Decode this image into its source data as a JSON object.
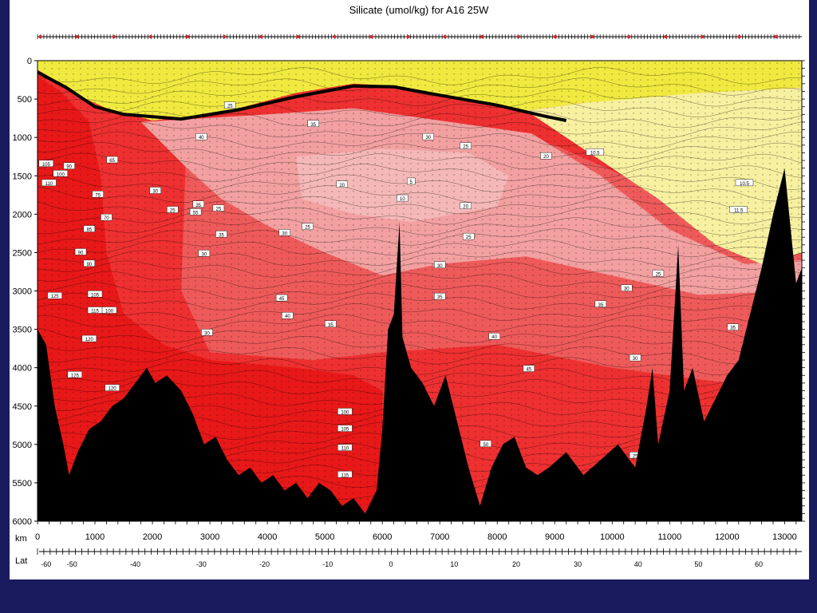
{
  "chart_data": {
    "type": "heatmap",
    "title": "Silicate (umol/kg) for A16 25W",
    "xlabel": "km",
    "x2label": "Lat",
    "y_ticks": [
      0,
      500,
      1000,
      1500,
      2000,
      2500,
      3000,
      3500,
      4000,
      4500,
      5000,
      5500,
      6000
    ],
    "ylim": [
      0,
      6000
    ],
    "y_inverted": true,
    "x_ticks": [
      0,
      1000,
      2000,
      3000,
      4000,
      5000,
      6000,
      7000,
      8000,
      9000,
      10000,
      11000,
      12000,
      13000
    ],
    "xlim": [
      0,
      13300
    ],
    "lat_ticks": [
      "-60",
      "-50",
      "-40",
      "-30",
      "-20",
      "-10",
      "0",
      "10",
      "20",
      "30",
      "40",
      "50",
      "60"
    ],
    "lat_tick_km": [
      150,
      600,
      1700,
      2850,
      3950,
      5050,
      6150,
      7250,
      8330,
      9400,
      10450,
      11500,
      12550
    ],
    "colors": {
      "low": "#f7f05a",
      "pale": "#f7f0a0",
      "pink": "#f2a0a0",
      "mid": "#ee6060",
      "high": "#ee2020",
      "bottom": "#000000",
      "border": "#1a1a5e"
    },
    "contour_labels": [
      {
        "text": "25",
        "km": 3350,
        "depth": 590
      },
      {
        "text": "35",
        "km": 4800,
        "depth": 830
      },
      {
        "text": "30",
        "km": 6800,
        "depth": 1000
      },
      {
        "text": "25",
        "km": 7450,
        "depth": 1120
      },
      {
        "text": "20",
        "km": 8850,
        "depth": 1250
      },
      {
        "text": "20",
        "km": 7450,
        "depth": 1900
      },
      {
        "text": "25",
        "km": 7500,
        "depth": 2300
      },
      {
        "text": "30",
        "km": 7000,
        "depth": 2670
      },
      {
        "text": "35",
        "km": 7000,
        "depth": 3080
      },
      {
        "text": "35",
        "km": 9800,
        "depth": 3180
      },
      {
        "text": "30",
        "km": 10250,
        "depth": 2970
      },
      {
        "text": "25",
        "km": 10800,
        "depth": 2780
      },
      {
        "text": "40",
        "km": 7950,
        "depth": 3600
      },
      {
        "text": "45",
        "km": 8550,
        "depth": 4020
      },
      {
        "text": "30",
        "km": 10400,
        "depth": 3880
      },
      {
        "text": "35",
        "km": 12100,
        "depth": 3480
      },
      {
        "text": "50",
        "km": 7800,
        "depth": 5000
      },
      {
        "text": "25",
        "km": 10400,
        "depth": 5150
      },
      {
        "text": "45",
        "km": 4250,
        "depth": 3100
      },
      {
        "text": "40",
        "km": 4350,
        "depth": 3330
      },
      {
        "text": "35",
        "km": 5100,
        "depth": 3440
      },
      {
        "text": "30",
        "km": 2950,
        "depth": 3550
      },
      {
        "text": "35",
        "km": 3200,
        "depth": 2270
      },
      {
        "text": "30",
        "km": 2900,
        "depth": 2520
      },
      {
        "text": "25",
        "km": 3150,
        "depth": 1930
      },
      {
        "text": "25",
        "km": 2350,
        "depth": 1950
      },
      {
        "text": "35",
        "km": 2800,
        "depth": 1880
      },
      {
        "text": "30",
        "km": 2050,
        "depth": 1700
      },
      {
        "text": "65",
        "km": 1300,
        "depth": 1300
      },
      {
        "text": "75",
        "km": 1050,
        "depth": 1750
      },
      {
        "text": "70",
        "km": 1200,
        "depth": 2050
      },
      {
        "text": "85",
        "km": 900,
        "depth": 2200
      },
      {
        "text": "90",
        "km": 750,
        "depth": 2500
      },
      {
        "text": "90",
        "km": 900,
        "depth": 2650
      },
      {
        "text": "105",
        "km": 1000,
        "depth": 3050
      },
      {
        "text": "115",
        "km": 1000,
        "depth": 3260
      },
      {
        "text": "100",
        "km": 1250,
        "depth": 3260
      },
      {
        "text": "120",
        "km": 900,
        "depth": 3630
      },
      {
        "text": "125",
        "km": 650,
        "depth": 4100
      },
      {
        "text": "120",
        "km": 1300,
        "depth": 4270
      },
      {
        "text": "125",
        "km": 300,
        "depth": 3070
      },
      {
        "text": "110",
        "km": 200,
        "depth": 1600
      },
      {
        "text": "105",
        "km": 150,
        "depth": 1350
      },
      {
        "text": "90",
        "km": 550,
        "depth": 1380
      },
      {
        "text": "100",
        "km": 400,
        "depth": 1480
      },
      {
        "text": "55",
        "km": 2750,
        "depth": 1980
      },
      {
        "text": "40",
        "km": 2850,
        "depth": 1000
      },
      {
        "text": "30",
        "km": 4300,
        "depth": 2250
      },
      {
        "text": "20",
        "km": 5300,
        "depth": 1620
      },
      {
        "text": "25",
        "km": 4700,
        "depth": 2170
      },
      {
        "text": "10",
        "km": 6350,
        "depth": 1800
      },
      {
        "text": "5",
        "km": 6500,
        "depth": 1580
      },
      {
        "text": "100",
        "km": 5350,
        "depth": 4580
      },
      {
        "text": "105",
        "km": 5350,
        "depth": 4800
      },
      {
        "text": "110",
        "km": 5350,
        "depth": 5050
      },
      {
        "text": "115",
        "km": 5350,
        "depth": 5400
      },
      {
        "text": "10.5",
        "km": 12300,
        "depth": 1600
      },
      {
        "text": "11.5",
        "km": 12200,
        "depth": 1950
      },
      {
        "text": "10.5",
        "km": 9700,
        "depth": 1200
      }
    ]
  }
}
